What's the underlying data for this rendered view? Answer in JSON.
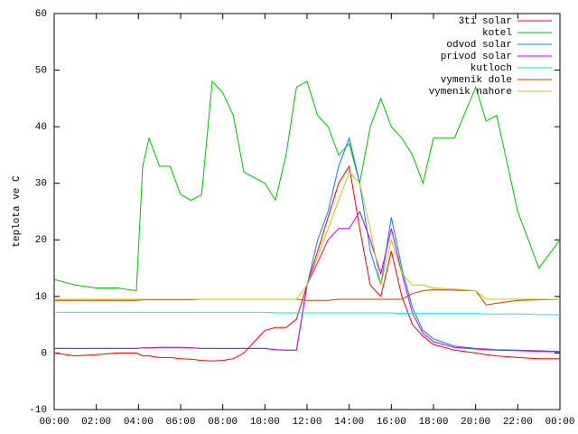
{
  "chart_data": {
    "type": "line",
    "y_label": "teplota ve C",
    "x": [
      0,
      1,
      2,
      3,
      3.9,
      4.2,
      4.5,
      5,
      5.5,
      6,
      6.5,
      7,
      7.5,
      8,
      8.5,
      9,
      9.5,
      10,
      10.5,
      11,
      11.5,
      12,
      12.5,
      13,
      13.5,
      14,
      14.5,
      15,
      15.5,
      16,
      16.5,
      17,
      17.5,
      18,
      19,
      20,
      20.5,
      21,
      22,
      23,
      24
    ],
    "xlim": [
      0,
      24
    ],
    "xticks": [
      {
        "value": 0,
        "label": "00:00"
      },
      {
        "value": 2,
        "label": "02:00"
      },
      {
        "value": 4,
        "label": "04:00"
      },
      {
        "value": 6,
        "label": "06:00"
      },
      {
        "value": 8,
        "label": "08:00"
      },
      {
        "value": 10,
        "label": "10:00"
      },
      {
        "value": 12,
        "label": "12:00"
      },
      {
        "value": 14,
        "label": "14:00"
      },
      {
        "value": 16,
        "label": "16:00"
      },
      {
        "value": 18,
        "label": "18:00"
      },
      {
        "value": 20,
        "label": "20:00"
      },
      {
        "value": 22,
        "label": "22:00"
      },
      {
        "value": 24,
        "label": "00:00"
      }
    ],
    "ylim": [
      -10,
      60
    ],
    "yticks": [
      -10,
      0,
      10,
      20,
      30,
      40,
      50,
      60
    ],
    "grid": false,
    "legend": "top-right",
    "series": [
      {
        "name": "3ti solar",
        "color": "#ff0000",
        "values": [
          0,
          -0.5,
          -0.3,
          0,
          0,
          -0.5,
          -0.5,
          -0.8,
          -0.8,
          -1,
          -1.1,
          -1.3,
          -1.4,
          -1.3,
          -1,
          0,
          2,
          4,
          4.5,
          4.5,
          6,
          12,
          18,
          24,
          30,
          33,
          22,
          12,
          10,
          18,
          10,
          5,
          3,
          1.5,
          0.5,
          0,
          -0.3,
          -0.5,
          -0.8,
          -1,
          -1
        ]
      },
      {
        "name": "kotel",
        "color": "#00c000",
        "values": [
          13,
          12,
          11.5,
          11.5,
          11,
          33,
          38,
          33,
          33,
          28,
          27,
          28,
          48,
          46,
          42,
          32,
          31,
          30,
          27,
          35,
          47,
          48,
          42,
          40,
          35,
          37,
          30,
          40,
          45,
          40,
          38,
          35,
          30,
          38,
          38,
          47,
          41,
          42,
          25,
          15,
          20
        ]
      },
      {
        "name": "odvod solar",
        "color": "#0080ff",
        "values": [
          0.8,
          0.8,
          0.8,
          0.8,
          0.8,
          0.9,
          0.9,
          1,
          1,
          1,
          0.9,
          0.8,
          0.8,
          0.8,
          0.8,
          0.8,
          0.8,
          0.8,
          0.6,
          0.5,
          0.5,
          12,
          20,
          25,
          33,
          38,
          30,
          18,
          12,
          24,
          15,
          8,
          4,
          2.5,
          1.2,
          0.8,
          0.7,
          0.6,
          0.5,
          0.4,
          0.3
        ]
      },
      {
        "name": "privod solar",
        "color": "#c000ff",
        "values": [
          0.8,
          0.8,
          0.8,
          0.8,
          0.8,
          0.9,
          0.9,
          1,
          1,
          1,
          0.9,
          0.8,
          0.8,
          0.8,
          0.8,
          0.8,
          0.8,
          0.8,
          0.6,
          0.5,
          0.5,
          12,
          16,
          20,
          22,
          22,
          25,
          20,
          14,
          22,
          14,
          7,
          3.5,
          2,
          1,
          0.7,
          0.6,
          0.5,
          0.4,
          0.3,
          0.2
        ]
      },
      {
        "name": "kutloch",
        "color": "#00eeee",
        "values": [
          7.2,
          7.2,
          7.2,
          7.2,
          7.2,
          7.2,
          7.2,
          7.2,
          7.2,
          7.2,
          7.2,
          7.2,
          7.2,
          7.2,
          7.2,
          7.2,
          7.2,
          7.2,
          7.1,
          7.1,
          7.1,
          7.1,
          7.1,
          7.1,
          7.1,
          7.1,
          7.1,
          7.1,
          7.1,
          7.1,
          7,
          7,
          7,
          7,
          7,
          7,
          6.9,
          6.9,
          6.9,
          6.8,
          6.8
        ]
      },
      {
        "name": "vymenik dole",
        "color": "#c04000",
        "values": [
          9.3,
          9.3,
          9.3,
          9.3,
          9.3,
          9.4,
          9.4,
          9.4,
          9.4,
          9.4,
          9.4,
          9.5,
          9.5,
          9.5,
          9.5,
          9.5,
          9.5,
          9.5,
          9.5,
          9.5,
          9.5,
          9.3,
          9.3,
          9.3,
          9.5,
          9.5,
          9.5,
          9.5,
          9.5,
          9.5,
          9.5,
          10.5,
          11,
          11.2,
          11.1,
          11,
          8.5,
          8.8,
          9.3,
          9.4,
          9.5
        ]
      },
      {
        "name": "vymenik nahore",
        "color": "#c8c800",
        "values": [
          9.5,
          9.5,
          9.5,
          9.5,
          9.5,
          9.5,
          9.5,
          9.5,
          9.5,
          9.5,
          9.5,
          9.5,
          9.5,
          9.5,
          9.5,
          9.5,
          9.5,
          9.5,
          9.5,
          9.5,
          9.5,
          12,
          17,
          22,
          27,
          32,
          30,
          22,
          12,
          20,
          14,
          12,
          12,
          11.5,
          11.3,
          11,
          9.5,
          9.5,
          9.5,
          9.5,
          9.5
        ]
      }
    ]
  }
}
